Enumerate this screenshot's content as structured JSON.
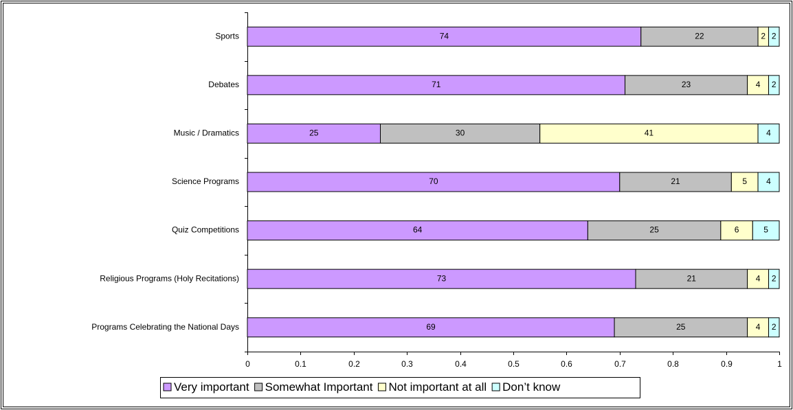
{
  "chart_data": {
    "type": "stacked-bar-horizontal",
    "categories": [
      "Sports",
      "Debates",
      "Music / Dramatics",
      "Science Programs",
      "Quiz Competitions",
      "Religious Programs (Holy Recitations)",
      "Programs Celebrating the National Days"
    ],
    "series": [
      {
        "name": "Very important",
        "color": "#cc99ff",
        "values": [
          0.74,
          0.71,
          0.25,
          0.7,
          0.64,
          0.73,
          0.69
        ],
        "value_labels": [
          "74",
          "71",
          "25",
          "70",
          "64",
          "73",
          "69"
        ]
      },
      {
        "name": "Somewhat Important",
        "color": "#c0c0c0",
        "values": [
          0.22,
          0.23,
          0.3,
          0.21,
          0.25,
          0.21,
          0.25
        ],
        "value_labels": [
          "22",
          "23",
          "30",
          "21",
          "25",
          "21",
          "25"
        ]
      },
      {
        "name": "Not important at all",
        "color": "#ffffcc",
        "values": [
          0.02,
          0.04,
          0.41,
          0.05,
          0.06,
          0.04,
          0.04
        ],
        "value_labels": [
          "2",
          "4",
          "41",
          "5",
          "6",
          "4",
          "4"
        ]
      },
      {
        "name": "Don’t know",
        "color": "#ccffff",
        "values": [
          0.02,
          0.02,
          0.04,
          0.04,
          0.05,
          0.02,
          0.02
        ],
        "value_labels": [
          "2",
          "2",
          "4",
          "4",
          "5",
          "2",
          "2"
        ]
      }
    ],
    "xlim": [
      0,
      1
    ],
    "xticks": [
      0,
      0.1,
      0.2,
      0.3,
      0.4,
      0.5,
      0.6,
      0.7,
      0.8,
      0.9,
      1
    ],
    "grid": false,
    "legend": "bottom"
  }
}
